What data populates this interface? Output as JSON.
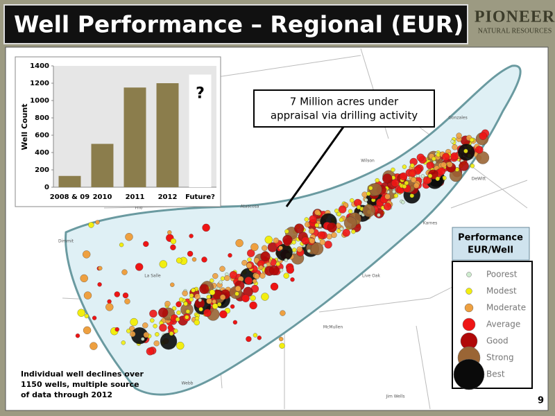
{
  "header": {
    "title": "Well Performance – Regional (EUR)",
    "logo": "PIONEER",
    "logo_sub": "NATURAL RESOURCES"
  },
  "chart_data": {
    "type": "bar",
    "ylabel": "Well Count",
    "categories": [
      "2008 & 09",
      "2010",
      "2011",
      "2012",
      "Future?"
    ],
    "values": [
      130,
      500,
      1150,
      1200,
      1300
    ],
    "colors": [
      "#8b7d4c",
      "#8b7d4c",
      "#8b7d4c",
      "#8b7d4c",
      "#ffffff"
    ],
    "annotation": "?",
    "ylim": [
      0,
      1400
    ],
    "yticks": [
      0,
      200,
      400,
      600,
      800,
      1000,
      1200,
      1400
    ],
    "grid": false
  },
  "callout": [
    "7 Million acres under",
    "appraisal via drilling activity"
  ],
  "legend": {
    "title": [
      "Performance",
      "EUR/Well"
    ],
    "items": [
      {
        "name": "Poorest",
        "color": "#cfeccf"
      },
      {
        "name": "Modest",
        "color": "#f2ee10"
      },
      {
        "name": "Moderate",
        "color": "#eea040"
      },
      {
        "name": "Average",
        "color": "#ee1515"
      },
      {
        "name": "Good",
        "color": "#b00808"
      },
      {
        "name": "Strong",
        "color": "#9a6535"
      },
      {
        "name": "Best",
        "color": "#0a0a0a"
      }
    ]
  },
  "note": [
    "Individual well declines over",
    "1150 wells, multiple source",
    "of data through 2012"
  ],
  "map_labels": [
    "Gonzales",
    "Wilson",
    "DeWitt",
    "Karnes",
    "McMullen",
    "Webb",
    "Jim Wells",
    "Live Oak",
    "Frio",
    "La Salle",
    "Atascosa",
    "Dimmit"
  ],
  "page_number": "9"
}
